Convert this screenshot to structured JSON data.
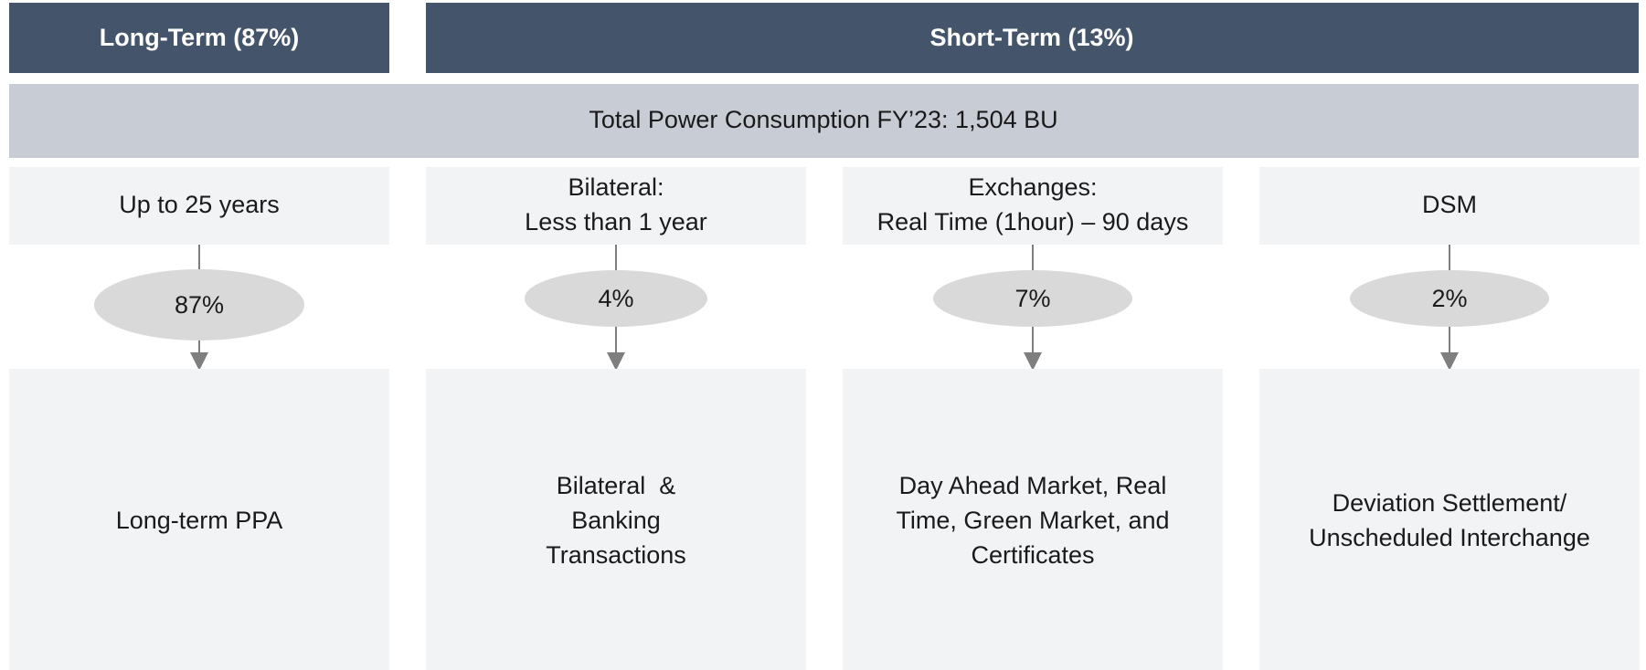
{
  "header": {
    "left": "Long-Term (87%)",
    "right": "Short-Term (13%)"
  },
  "total": "Total Power Consumption FY’23: 1,504 BU",
  "columns": [
    {
      "period": [
        "Up to 25 years"
      ],
      "share": "87%",
      "description": [
        "Long-term PPA"
      ]
    },
    {
      "period": [
        "Bilateral:",
        "Less than 1 year"
      ],
      "share": "4%",
      "description": [
        "Bilateral  &",
        "Banking",
        "Transactions"
      ]
    },
    {
      "period": [
        "Exchanges:",
        "Real Time (1hour) – 90 days"
      ],
      "share": "7%",
      "description": [
        "Day Ahead Market, Real",
        "Time, Green Market, and",
        "Certificates"
      ]
    },
    {
      "period": [
        "DSM"
      ],
      "share": "2%",
      "description": [
        "Deviation Settlement/",
        "Unscheduled Interchange"
      ]
    }
  ]
}
